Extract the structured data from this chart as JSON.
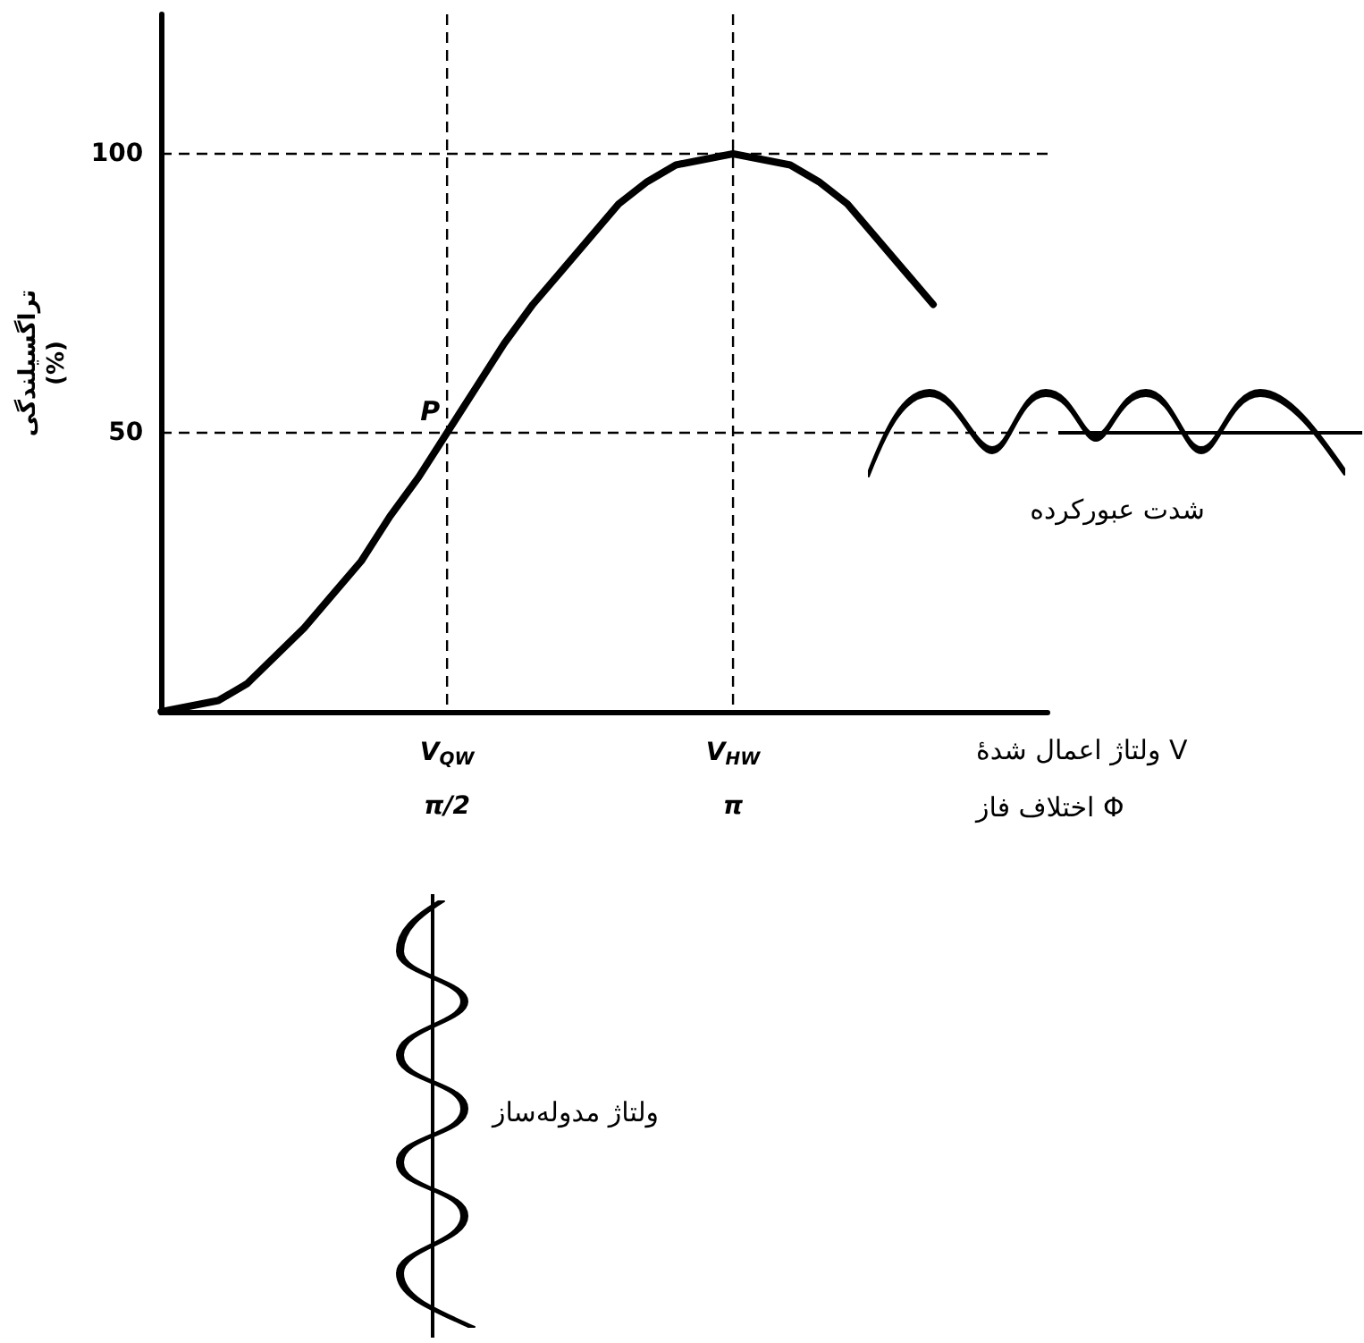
{
  "chart_data": {
    "type": "line",
    "ylabel": "تراگسیلندگی\n(%)",
    "xlabel": "ولتاژ اعمال شدهٔ V",
    "x2label": "اختلاف فاز Φ",
    "categories": [
      null,
      null,
      null,
      null,
      null,
      null,
      null,
      null,
      null,
      null,
      "V$_{QW}$",
      null,
      null,
      null,
      null,
      null,
      null,
      null,
      null,
      null,
      "V$_{HW}$",
      null,
      null,
      null,
      null,
      null,
      null,
      null,
      null,
      null,
      null,
      null
    ],
    "series": [
      {
        "color": "#000000",
        "values": [
          0,
          1,
          2,
          5,
          10,
          15,
          21,
          27,
          35,
          42,
          50,
          58,
          66,
          73,
          79,
          85,
          91,
          95,
          98,
          99,
          100,
          99,
          98,
          95,
          91,
          85,
          79,
          73,
          null,
          null,
          null,
          null
        ]
      }
    ],
    "x2lim": [
      0,
      4.8695
    ],
    "x2ticks": [
      {
        "value": 1.5708,
        "label": "π/2"
      },
      {
        "value": 3.1416,
        "label": "π"
      }
    ],
    "ylim": [
      0,
      125
    ],
    "yticks": [
      50,
      100
    ],
    "ref_lines": [
      {
        "axis": "y",
        "value": 100,
        "line_style": "dashed",
        "color": "#000000"
      },
      {
        "axis": "y",
        "value": 50,
        "line_style": "dashed",
        "color": "#000000"
      },
      {
        "axis": "x2",
        "value": 1.5708,
        "line_style": "dashed",
        "color": "#000000"
      },
      {
        "axis": "x2",
        "value": 3.1416,
        "line_style": "dashed",
        "color": "#000000"
      }
    ],
    "annotations": [
      {
        "text": "P",
        "x": "V$_{QW}$",
        "y": 50
      },
      "شدت عبورکرده",
      "ولتاژ مدوله‌ساز"
    ],
    "marker": "none",
    "line_style": "solid",
    "grid": false
  }
}
